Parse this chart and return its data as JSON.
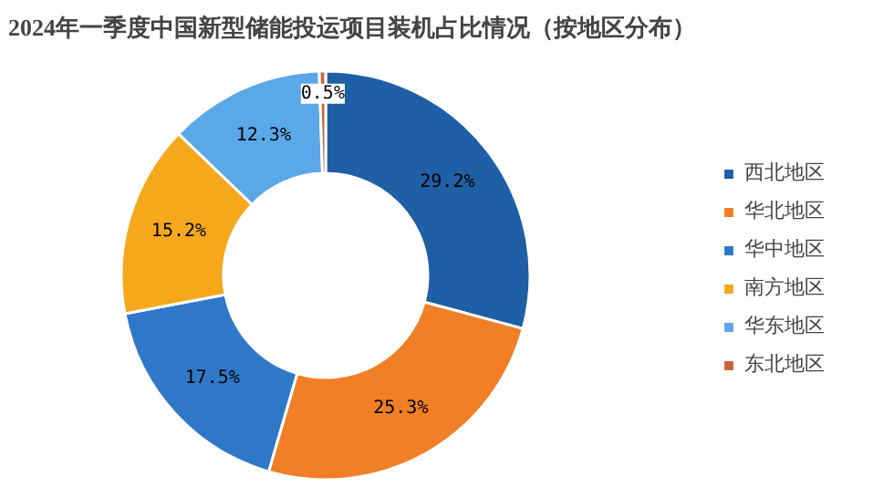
{
  "chart_data": {
    "type": "donut",
    "title": "2024年一季度中国新型储能投运项目装机占比情况（按地区分布）",
    "categories": [
      "西北地区",
      "华北地区",
      "华中地区",
      "南方地区",
      "华东地区",
      "东北地区"
    ],
    "values": [
      29.2,
      25.3,
      17.5,
      15.2,
      12.3,
      0.5
    ],
    "colors": [
      "#1f5fa6",
      "#f07f28",
      "#2f78c8",
      "#f5a81c",
      "#5aa8e8",
      "#c8643c"
    ],
    "value_labels": [
      "29.2%",
      "25.3%",
      "17.5%",
      "15.2%",
      "12.3%",
      "0.5%"
    ],
    "legend": "right"
  }
}
